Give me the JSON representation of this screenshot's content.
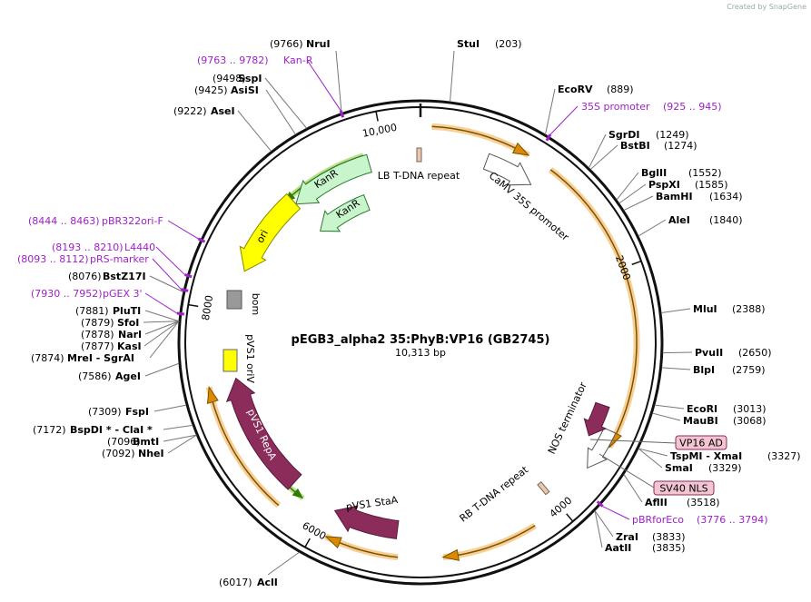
{
  "watermark": "Created by SnapGene",
  "title": "pEGB3_alpha2 35:PhyB:VP16  (GB2745)",
  "length": "10,313 bp",
  "ticks": [
    "10,000",
    "2000",
    "4000",
    "6000",
    "8000"
  ],
  "sites": [
    {
      "name": "StuI",
      "position": "(203)"
    },
    {
      "name": "EcoRV",
      "position": "(889)"
    },
    {
      "name": "SgrDI",
      "position": "(1249)"
    },
    {
      "name": "BstBI",
      "position": "(1274)"
    },
    {
      "name": "BglII",
      "position": "(1552)"
    },
    {
      "name": "PspXI",
      "position": "(1585)"
    },
    {
      "name": "BamHI",
      "position": "(1634)"
    },
    {
      "name": "AleI",
      "position": "(1840)"
    },
    {
      "name": "MluI",
      "position": "(2388)"
    },
    {
      "name": "PvuII",
      "position": "(2650)"
    },
    {
      "name": "BlpI",
      "position": "(2759)"
    },
    {
      "name": "EcoRI",
      "position": "(3013)"
    },
    {
      "name": "MauBI",
      "position": "(3068)"
    },
    {
      "name": "TspMI  - XmaI",
      "position": "(3327)"
    },
    {
      "name": "SmaI",
      "position": "(3329)"
    },
    {
      "name": "AflII",
      "position": "(3518)"
    },
    {
      "name": "ZraI",
      "position": "(3833)"
    },
    {
      "name": "AatII",
      "position": "(3835)"
    },
    {
      "name": "AclI",
      "position": "(6017)"
    },
    {
      "name": "NruI",
      "position": "(9766)"
    },
    {
      "name": "SspI",
      "position": "(9498)"
    },
    {
      "name": "AsiSI",
      "position": "(9425)"
    },
    {
      "name": "AseI",
      "position": "(9222)"
    },
    {
      "name": "BstZ17I",
      "position": "(8076)"
    },
    {
      "name": "PluTI",
      "position": "(7881)"
    },
    {
      "name": "SfoI",
      "position": "(7879)"
    },
    {
      "name": "NarI",
      "position": "(7878)"
    },
    {
      "name": "KasI",
      "position": "(7877)"
    },
    {
      "name": "MreI  - SgrAI",
      "position": "(7874)"
    },
    {
      "name": "AgeI",
      "position": "(7586)"
    },
    {
      "name": "FspI",
      "position": "(7309)"
    },
    {
      "name": "BspDI *  - ClaI *",
      "position": "(7172)"
    },
    {
      "name": "BmtI",
      "position": "(7096)"
    },
    {
      "name": "NheI",
      "position": "(7092)"
    }
  ],
  "primers": [
    {
      "name": "Kan-R",
      "range": "(9763 .. 9782)"
    },
    {
      "name": "35S promoter",
      "range": "(925 .. 945)"
    },
    {
      "name": "pBR322ori-F",
      "range": "(8444 .. 8463)"
    },
    {
      "name": "L4440",
      "range": "(8193 .. 8210)"
    },
    {
      "name": "pRS-marker",
      "range": "(8093 .. 8112)"
    },
    {
      "name": "pGEX 3'",
      "range": "(7930 .. 7952)"
    },
    {
      "name": "pBRforEco",
      "range": "(3776 .. 3794)"
    }
  ],
  "features": [
    "KanR",
    "KanR",
    "ori",
    "bom",
    "pVS1 oriV",
    "pVS1 RepA",
    "pVS1 StaA",
    "LB T-DNA repeat",
    "CaMV 35S promoter",
    "NOS terminator",
    "RB T-DNA repeat"
  ],
  "boxed": [
    "VP16 AD",
    "SV40 NLS"
  ]
}
